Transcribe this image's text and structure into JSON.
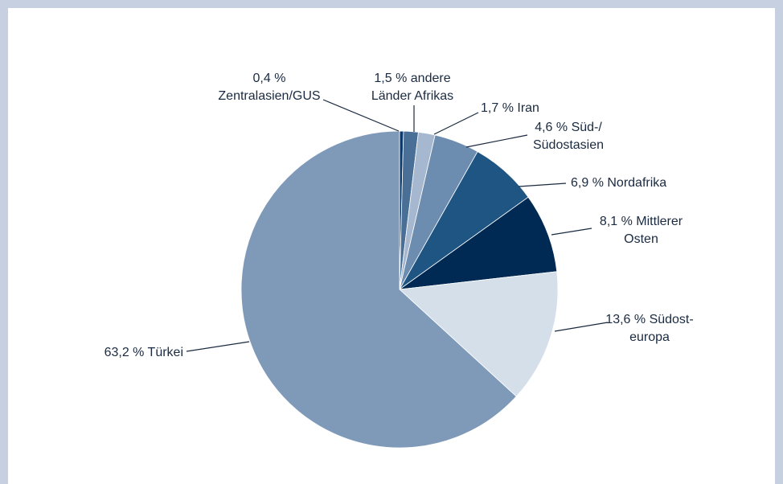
{
  "chart_data": {
    "type": "pie",
    "categories": [
      "Zentralasien/GUS",
      "andere Länder Afrikas",
      "Iran",
      "Süd-/ Südostasien",
      "Nordafrika",
      "Mittlerer Osten",
      "Südost- europa",
      "Türkei"
    ],
    "values": [
      0.4,
      1.5,
      1.7,
      4.6,
      6.9,
      8.1,
      13.6,
      63.2
    ],
    "value_labels": [
      "0,4 %",
      "1,5 %",
      "1,7 %",
      "4,6 %",
      "6,9 %",
      "8,1 %",
      "13,6 %",
      "63,2 %"
    ],
    "colors": [
      "#0d3a6a",
      "#4a6f96",
      "#a5b8d0",
      "#6d8db0",
      "#1f5582",
      "#002a54",
      "#d5dfe9",
      "#7f9ab9"
    ]
  }
}
